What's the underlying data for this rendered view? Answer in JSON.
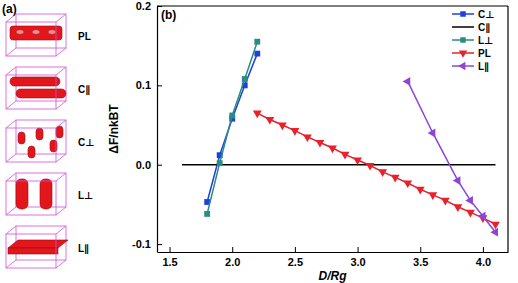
{
  "panel_a": {
    "label": "(a)",
    "structures": [
      "PL",
      "C∥",
      "C⊥",
      "L⊥",
      "L∥"
    ]
  },
  "chart_data": {
    "type": "line",
    "title": "(b)",
    "x_label": "D/Rg",
    "y_label": "ΔF/nkBT",
    "xlim": [
      1.4,
      4.2
    ],
    "xticks": [
      1.5,
      {
        "value": 2,
        "label": "2.0"
      },
      2.5,
      {
        "value": 3,
        "label": "3.0"
      },
      3.5,
      {
        "value": 4,
        "label": "4.0"
      }
    ],
    "ylim": [
      -0.11,
      0.2
    ],
    "yticks": [
      -0.1,
      {
        "value": 0,
        "label": "0.0"
      },
      0.1,
      0.2
    ],
    "legend": "upper right",
    "series": [
      {
        "name": "C⊥",
        "color": "#1f3fe0",
        "marker": "square",
        "line_style": "solid",
        "x": [
          1.8,
          1.9,
          2.0,
          2.1,
          2.2
        ],
        "values": [
          -0.047,
          0.012,
          0.058,
          0.1,
          0.14
        ]
      },
      {
        "name": "C∥",
        "color": "#000000",
        "marker": "none",
        "line_style": "solid",
        "x": [
          1.6,
          4.1
        ],
        "values": [
          0,
          0
        ]
      },
      {
        "name": "L⊥",
        "color": "#2a8c82",
        "marker": "square",
        "line_style": "solid",
        "x": [
          1.8,
          1.9,
          2.0,
          2.1,
          2.2
        ],
        "values": [
          -0.062,
          0.002,
          0.062,
          0.108,
          0.155
        ]
      },
      {
        "name": "PL",
        "color": "#e8212c",
        "marker": "triangle-down",
        "line_style": "solid",
        "x": [
          2.2,
          2.3,
          2.4,
          2.5,
          2.6,
          2.7,
          2.8,
          2.9,
          3.0,
          3.1,
          3.2,
          3.3,
          3.4,
          3.5,
          3.6,
          3.7,
          3.8,
          3.9,
          4.0,
          4.1
        ],
        "values": [
          0.065,
          0.057,
          0.05,
          0.043,
          0.035,
          0.028,
          0.021,
          0.013,
          0.006,
          -0.001,
          -0.009,
          -0.016,
          -0.023,
          -0.031,
          -0.038,
          -0.045,
          -0.053,
          -0.06,
          -0.067,
          -0.075
        ]
      },
      {
        "name": "L∥",
        "color": "#8e44d6",
        "marker": "triangle-left",
        "line_style": "solid",
        "x": [
          3.4,
          3.6,
          3.8,
          3.9,
          4.0,
          4.1
        ],
        "values": [
          0.105,
          0.04,
          -0.02,
          -0.045,
          -0.065,
          -0.085
        ]
      }
    ]
  }
}
